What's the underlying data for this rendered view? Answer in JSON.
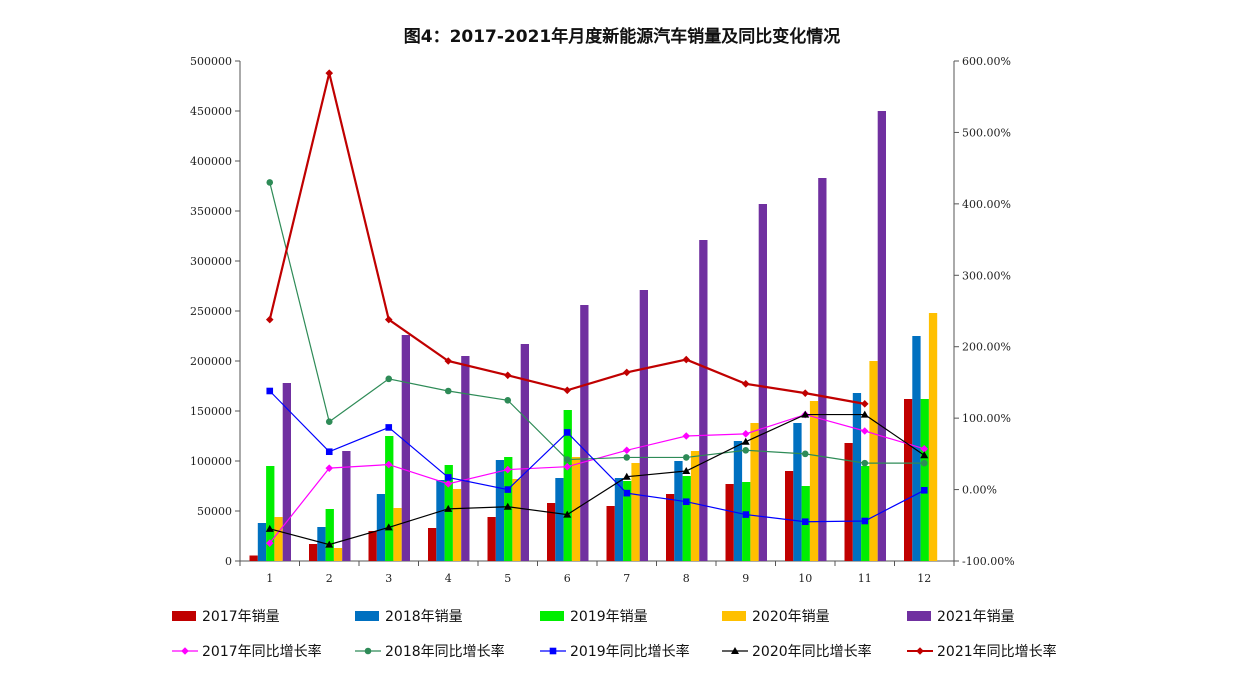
{
  "title": "图4：2017-2021年月度新能源汽车销量及同比变化情况",
  "chart_data": {
    "type": "bar",
    "categories": [
      "1",
      "2",
      "3",
      "4",
      "5",
      "6",
      "7",
      "8",
      "9",
      "10",
      "11",
      "12"
    ],
    "y_left": {
      "ylim": [
        0,
        500000
      ],
      "ticks": [
        "0",
        "50000",
        "100000",
        "150000",
        "200000",
        "250000",
        "300000",
        "350000",
        "400000",
        "450000",
        "500000"
      ],
      "tick_values": [
        0,
        50000,
        100000,
        150000,
        200000,
        250000,
        300000,
        350000,
        400000,
        450000,
        500000
      ]
    },
    "y_right": {
      "ylim": [
        -100,
        600
      ],
      "ticks": [
        "-100.00%",
        "0.00%",
        "100.00%",
        "200.00%",
        "300.00%",
        "400.00%",
        "500.00%",
        "600.00%"
      ],
      "tick_values": [
        -100,
        0,
        100,
        200,
        300,
        400,
        500,
        600
      ]
    },
    "bar_series": [
      {
        "name": "2017年销量",
        "color": "#C00000",
        "values": [
          5500,
          17000,
          30000,
          33000,
          44000,
          58000,
          55000,
          67000,
          77000,
          90000,
          118000,
          162000
        ]
      },
      {
        "name": "2018年销量",
        "color": "#0070C0",
        "values": [
          38000,
          34000,
          67000,
          81000,
          101000,
          83000,
          83000,
          100000,
          120000,
          138000,
          168000,
          225000
        ]
      },
      {
        "name": "2019年销量",
        "color": "#00EE00",
        "values": [
          95000,
          52000,
          125000,
          96000,
          104000,
          151000,
          80000,
          85000,
          79000,
          75000,
          95000,
          162000
        ]
      },
      {
        "name": "2020年销量",
        "color": "#FFC000",
        "values": [
          44000,
          13000,
          53000,
          72000,
          82000,
          104000,
          98000,
          110000,
          138000,
          160000,
          200000,
          248000
        ]
      },
      {
        "name": "2021年销量",
        "color": "#7030A0",
        "values": [
          178000,
          110000,
          226000,
          205000,
          217000,
          256000,
          271000,
          321000,
          357000,
          383000,
          450000,
          0
        ]
      }
    ],
    "line_series": [
      {
        "name": "2017年同比增长率",
        "color": "#FF00FF",
        "marker": "diamond",
        "values": [
          -75,
          30,
          35,
          8,
          28,
          32,
          55,
          75,
          78,
          105,
          82,
          57
        ]
      },
      {
        "name": "2018年同比增长率",
        "color": "#2E8B57",
        "marker": "circle",
        "values": [
          430,
          95,
          155,
          138,
          125,
          42,
          45,
          45,
          55,
          50,
          37,
          37
        ]
      },
      {
        "name": "2019年同比增长率",
        "color": "#0000FF",
        "marker": "square",
        "values": [
          138,
          53,
          87,
          17,
          0,
          80,
          -5,
          -17,
          -35,
          -45,
          -44,
          -1
        ]
      },
      {
        "name": "2020年同比增长率",
        "color": "#000000",
        "marker": "triangle",
        "values": [
          -55,
          -77,
          -53,
          -27,
          -24,
          -35,
          18,
          26,
          67,
          105,
          105,
          48
        ]
      },
      {
        "name": "2021年同比增长率",
        "color": "#C00000",
        "marker": "diamond",
        "values": [
          238,
          583,
          238,
          180,
          160,
          139,
          164,
          182,
          148,
          135,
          120,
          null
        ]
      }
    ],
    "legend_position": "bottom",
    "grid": false
  }
}
